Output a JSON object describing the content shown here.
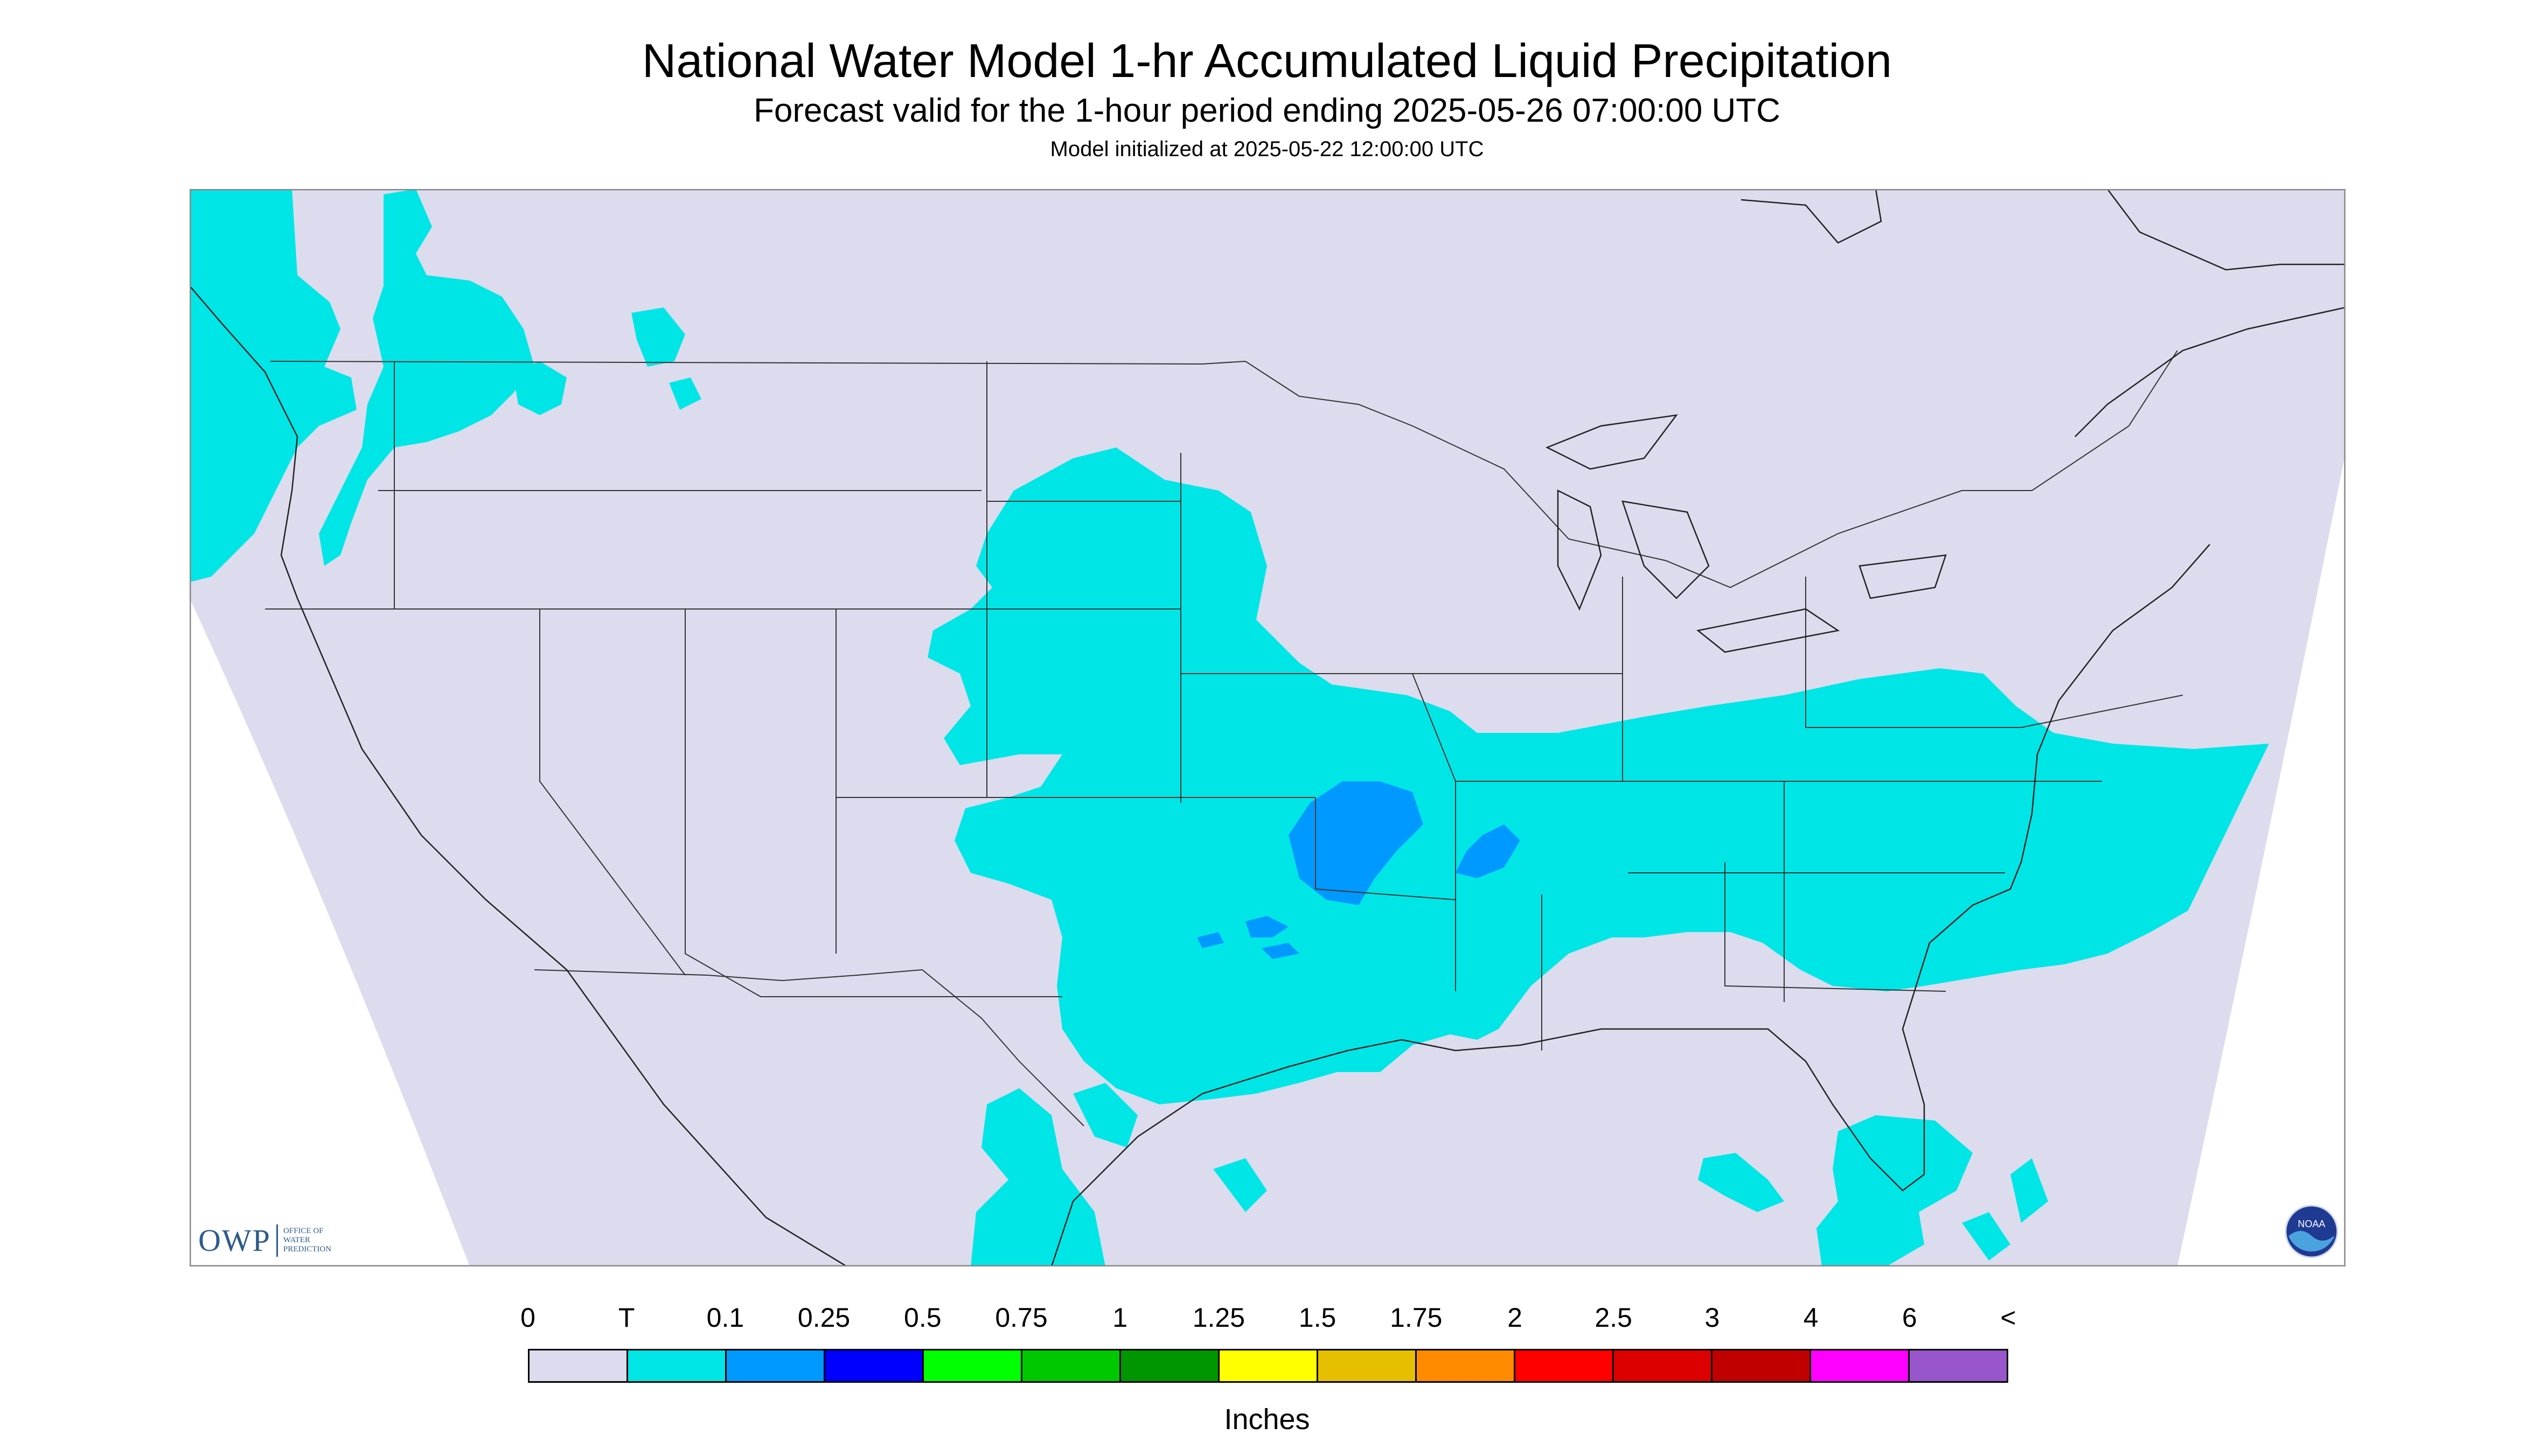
{
  "title": "National Water Model 1-hr Accumulated Liquid Precipitation",
  "subtitle": "Forecast valid for the 1-hour period ending 2025-05-26 07:00:00 UTC",
  "init_line": "Model initialized at 2025-05-22 12:00:00 UTC",
  "legend": {
    "labels": [
      "0",
      "T",
      "0.1",
      "0.25",
      "0.5",
      "0.75",
      "1",
      "1.25",
      "1.5",
      "1.75",
      "2",
      "2.5",
      "3",
      "4",
      "6",
      "<"
    ],
    "colors": [
      "#dcdcee",
      "#00e6e6",
      "#0099ff",
      "#0000ff",
      "#00ff00",
      "#00c800",
      "#009600",
      "#ffff00",
      "#e6be00",
      "#ff8c00",
      "#ff0000",
      "#dc0000",
      "#c00000",
      "#ff00ff",
      "#9955cc"
    ],
    "units": "Inches"
  },
  "logos": {
    "owp_mark": "OWP",
    "owp_text": "OFFICE OF WATER PREDICTION",
    "noaa_text": "NOAA"
  },
  "map": {
    "region": "CONUS",
    "background_color": "#dcdcee",
    "border_color": "#333333"
  }
}
